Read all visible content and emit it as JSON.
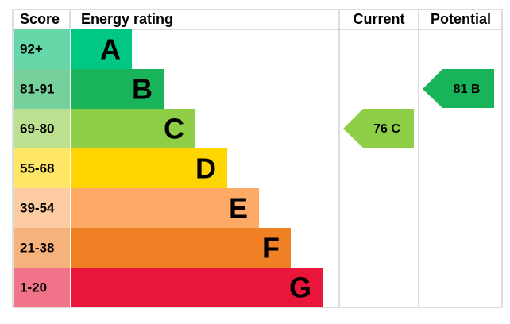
{
  "header": {
    "score": "Score",
    "rating": "Energy rating",
    "current": "Current",
    "potential": "Potential"
  },
  "bands": [
    {
      "score": "92+",
      "letter": "A",
      "color": "#00c781",
      "light": "#66d7a8"
    },
    {
      "score": "81-91",
      "letter": "B",
      "color": "#19b459",
      "light": "#75d09b"
    },
    {
      "score": "69-80",
      "letter": "C",
      "color": "#8dce46",
      "light": "#bbe190"
    },
    {
      "score": "55-68",
      "letter": "D",
      "color": "#ffd500",
      "light": "#ffe666"
    },
    {
      "score": "39-54",
      "letter": "E",
      "color": "#fcaa65",
      "light": "#fdcca3"
    },
    {
      "score": "21-38",
      "letter": "F",
      "color": "#ef8023",
      "light": "#f5b37b"
    },
    {
      "score": "1-20",
      "letter": "G",
      "color": "#e9153b",
      "light": "#f27389"
    }
  ],
  "current": {
    "label": "76 C",
    "band": 2
  },
  "potential": {
    "label": "81 B",
    "band": 1
  }
}
